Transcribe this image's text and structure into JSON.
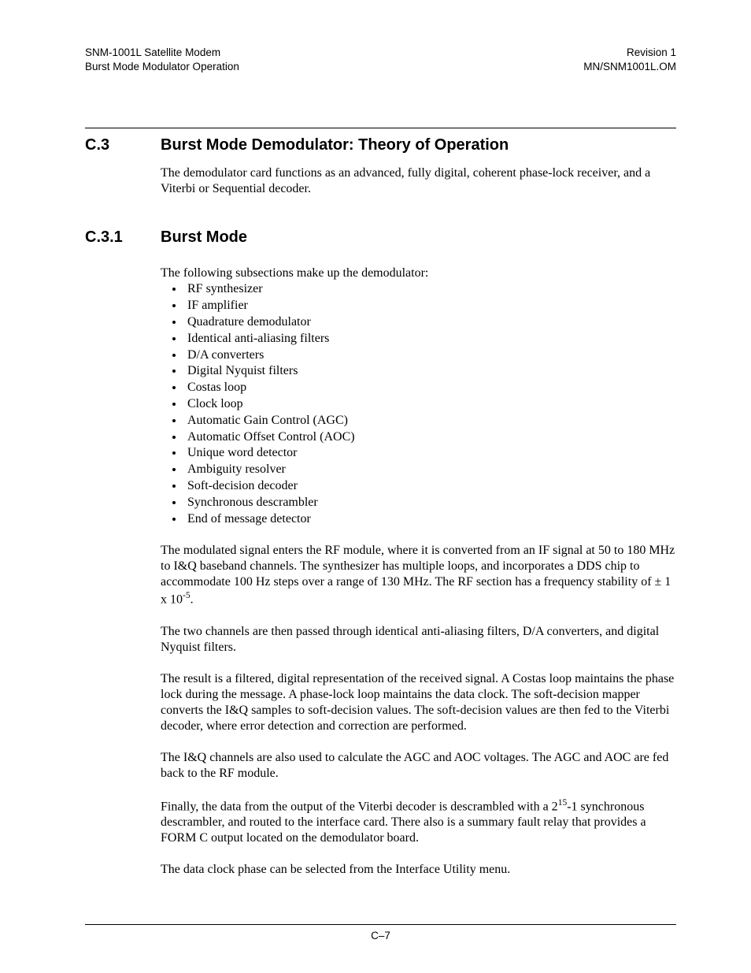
{
  "header": {
    "left_line1": "SNM-1001L Satellite Modem",
    "left_line2": "Burst Mode Modulator Operation",
    "right_line1": "Revision 1",
    "right_line2": "MN/SNM1001L.OM"
  },
  "section_c3": {
    "number": "C.3",
    "title": "Burst Mode Demodulator: Theory of Operation",
    "intro": "The demodulator card functions as an advanced, fully digital, coherent phase-lock receiver, and a Viterbi or Sequential decoder."
  },
  "section_c3_1": {
    "number": "C.3.1",
    "title": "Burst Mode",
    "lead": "The following subsections make up the demodulator:",
    "bullets": [
      "RF synthesizer",
      "IF amplifier",
      "Quadrature demodulator",
      "Identical anti-aliasing filters",
      "D/A converters",
      "Digital Nyquist filters",
      "Costas loop",
      "Clock loop",
      "Automatic Gain Control (AGC)",
      "Automatic Offset Control (AOC)",
      "Unique word detector",
      "Ambiguity resolver",
      "Soft-decision decoder",
      "Synchronous descrambler",
      "End of message detector"
    ],
    "p1_a": "The modulated signal enters the RF module, where it is converted from an IF signal at 50 to 180 MHz to I&Q baseband channels. The synthesizer has multiple loops, and incorporates a DDS chip to accommodate 100 Hz steps over a range of 130 MHz. The RF section has a frequency stability of ± 1 x 10",
    "p1_sup": "-5",
    "p1_b": ".",
    "p2": "The two channels are then passed through identical anti-aliasing filters, D/A converters, and digital Nyquist filters.",
    "p3": "The result is a filtered, digital representation of the received signal. A Costas loop maintains the phase lock during the message. A phase-lock loop maintains the data clock. The soft-decision mapper converts the I&Q samples to soft-decision values. The soft-decision values are then fed to the Viterbi decoder, where error detection and correction are performed.",
    "p4": "The I&Q channels are also used to calculate the AGC and AOC voltages. The AGC and AOC are fed back to the RF module.",
    "p5_a": "Finally, the data from the output of the Viterbi decoder is descrambled with a 2",
    "p5_sup": "15",
    "p5_b": "-1 synchronous descrambler, and routed to the interface card. There also is a summary fault relay that provides a FORM C output located on the demodulator board.",
    "p6": "The data clock phase can be selected from the Interface Utility menu."
  },
  "footer": {
    "page_number": "C–7"
  },
  "style": {
    "font_body": "Times New Roman",
    "font_heading": "Arial",
    "heading_size_pt": 15,
    "body_size_pt": 12,
    "header_size_pt": 10,
    "text_color": "#000000",
    "background_color": "#ffffff",
    "rule_color": "#000000"
  }
}
